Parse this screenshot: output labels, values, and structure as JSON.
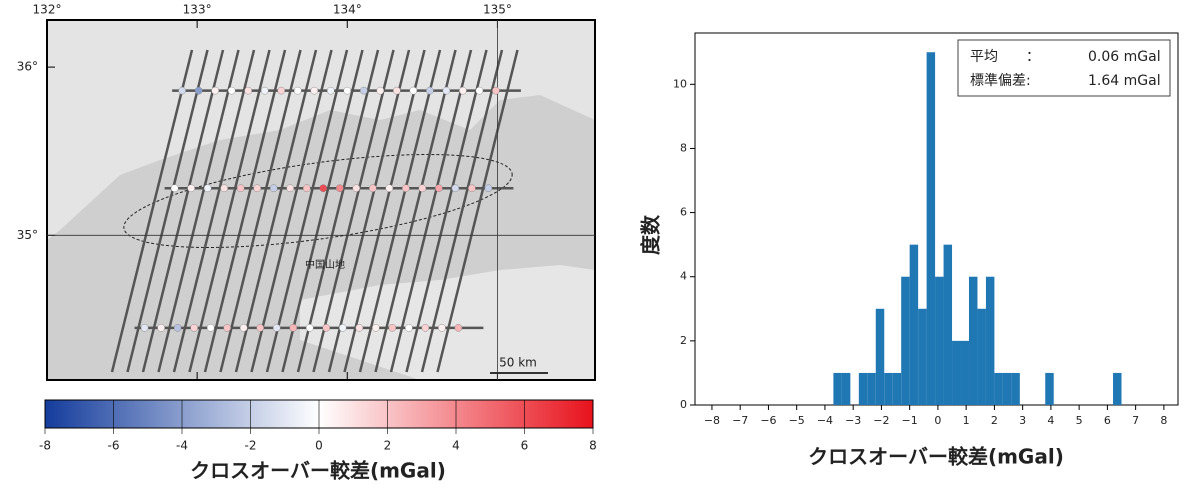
{
  "map": {
    "lon_lim": [
      132,
      135.65
    ],
    "lat_lim": [
      34.14,
      36.28
    ],
    "lon_ticks": [
      {
        "value": 132,
        "label": "132°"
      },
      {
        "value": 133,
        "label": "133°"
      },
      {
        "value": 134,
        "label": "134°"
      },
      {
        "value": 135,
        "label": "135°"
      }
    ],
    "lat_ticks": [
      {
        "value": 35,
        "label": "35°"
      },
      {
        "value": 36,
        "label": "36°"
      }
    ],
    "place_label": "中国山地",
    "scale_label": "50 km",
    "rows": [
      {
        "lat": 35.86,
        "lons": [
          132.9,
          133.01,
          133.12,
          133.23,
          133.34,
          133.45,
          133.56,
          133.67,
          133.78,
          133.89,
          134.0,
          134.11,
          134.22,
          134.33,
          134.44,
          134.55,
          134.66,
          134.77,
          134.88,
          134.99
        ],
        "values": [
          -1.5,
          -4,
          0.5,
          0,
          1,
          -0.5,
          1.5,
          0,
          0.5,
          -0.5,
          0,
          -2,
          0.5,
          1,
          0,
          -2,
          -1,
          0.5,
          0,
          2
        ]
      },
      {
        "lat": 35.28,
        "lons": [
          132.85,
          132.96,
          133.07,
          133.18,
          133.29,
          133.4,
          133.51,
          133.62,
          133.73,
          133.84,
          133.95,
          134.06,
          134.17,
          134.28,
          134.39,
          134.5,
          134.61,
          134.72,
          134.83,
          134.94
        ],
        "values": [
          0,
          0.5,
          -0.5,
          1,
          2,
          1.5,
          -2,
          1,
          2,
          6,
          4,
          1,
          2,
          0.5,
          2,
          1.5,
          3,
          -1.5,
          2,
          -2
        ]
      },
      {
        "lat": 34.45,
        "lons": [
          132.65,
          132.76,
          132.87,
          132.98,
          133.09,
          133.2,
          133.31,
          133.42,
          133.53,
          133.64,
          133.75,
          133.86,
          133.97,
          134.08,
          134.19,
          134.3,
          134.41,
          134.52,
          134.63,
          134.74
        ],
        "values": [
          -1,
          0.5,
          -2.5,
          1.5,
          0,
          2,
          0.5,
          2,
          -1,
          2.5,
          0,
          2,
          -0.5,
          1,
          0.5,
          2,
          0,
          1.5,
          0.5,
          2.5
        ]
      }
    ]
  },
  "colorbar": {
    "lim": [
      -8,
      8
    ],
    "cmap": [
      "#143c9c",
      "#ffffff",
      "#e8121c"
    ],
    "ticks": [
      {
        "value": -8,
        "label": "-8"
      },
      {
        "value": -6,
        "label": "-6"
      },
      {
        "value": -4,
        "label": "-4"
      },
      {
        "value": -2,
        "label": "-2"
      },
      0,
      2,
      4,
      6,
      8
    ],
    "label": "クロスオーバー較差(mGal)"
  },
  "chart_data": {
    "type": "histogram",
    "color": "#1f77b4",
    "bins": [
      -3.7,
      -3.4,
      -3.1,
      -2.8,
      -2.5,
      -2.2,
      -1.9,
      -1.6,
      -1.3,
      -1.0,
      -0.7,
      -0.4,
      -0.1,
      0.2,
      0.5,
      0.8,
      1.1,
      1.4,
      1.7,
      2.0,
      2.3,
      2.6,
      2.9,
      3.2,
      3.5,
      3.8,
      4.1,
      4.4,
      4.7,
      5.0,
      5.3,
      5.6,
      5.9,
      6.2,
      6.5
    ],
    "values": [
      1,
      1,
      0,
      1,
      1,
      3,
      1,
      1,
      4,
      5,
      3,
      11,
      4,
      5,
      2,
      2,
      4,
      3,
      4,
      1,
      1,
      1,
      0,
      0,
      0,
      1,
      0,
      0,
      0,
      0,
      0,
      0,
      0,
      1
    ],
    "xlim": [
      -8.6,
      8.5
    ],
    "ylim": [
      0,
      11.6
    ],
    "xticks": [
      {
        "value": -8,
        "label": "−8"
      },
      {
        "value": -7,
        "label": "−7"
      },
      {
        "value": -6,
        "label": "−6"
      },
      {
        "value": -5,
        "label": "−5"
      },
      {
        "value": -4,
        "label": "−4"
      },
      {
        "value": -3,
        "label": "−3"
      },
      {
        "value": -2,
        "label": "−2"
      },
      {
        "value": -1,
        "label": "−1"
      },
      0,
      1,
      2,
      3,
      4,
      5,
      6,
      7,
      8
    ],
    "yticks": [
      0,
      2,
      4,
      6,
      8,
      10
    ],
    "xlabel": "クロスオーバー較差(mGal)",
    "ylabel": "度数",
    "stats": [
      {
        "name": "平均　　：",
        "value": "0.06 mGal"
      },
      {
        "name": "標準偏差:",
        "value": "1.64 mGal"
      }
    ]
  }
}
